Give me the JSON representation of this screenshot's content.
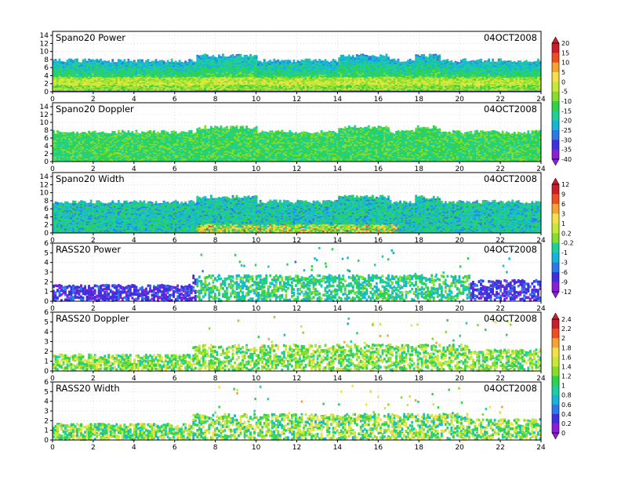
{
  "date_label": "04OCT2008",
  "x_ticks": [
    "0",
    "2",
    "4",
    "6",
    "8",
    "10",
    "12",
    "14",
    "16",
    "18",
    "20",
    "22",
    "24"
  ],
  "colorbars": [
    {
      "ticks": [
        "20",
        "15",
        "10",
        "5",
        "0",
        "-5",
        "-10",
        "-15",
        "-20",
        "-25",
        "-30",
        "-35",
        "-40"
      ]
    },
    {
      "ticks": [
        "12",
        "9",
        "6",
        "3",
        "1",
        "0.2",
        "-0.2",
        "-1",
        "-3",
        "-6",
        "-9",
        "-12"
      ]
    },
    {
      "ticks": [
        "2.4",
        "2.2",
        "2",
        "1.8",
        "1.6",
        "1.4",
        "1.2",
        "1",
        "0.8",
        "0.6",
        "0.4",
        "0.2",
        "0"
      ]
    }
  ],
  "palette": [
    "#8a1fd8",
    "#3e2fe0",
    "#2c79e8",
    "#17b4d8",
    "#1fcf9a",
    "#2fd24a",
    "#86dd2c",
    "#c8e838",
    "#f3e04a",
    "#f5a433",
    "#ee4f22",
    "#c81f2b"
  ],
  "chart_data": [
    {
      "type": "heatmap",
      "title": "Spano20 Power",
      "date": "04OCT2008",
      "y_ticks": [
        "0",
        "2",
        "4",
        "6",
        "8",
        "10",
        "12",
        "14"
      ],
      "ylim": [
        0,
        15
      ],
      "xlim": [
        0,
        24
      ],
      "colorbar": 0,
      "data_top_km": 7.8,
      "grid": true
    },
    {
      "type": "heatmap",
      "title": "Spano20 Doppler",
      "date": "04OCT2008",
      "y_ticks": [
        "0",
        "2",
        "4",
        "6",
        "8",
        "10",
        "12",
        "14"
      ],
      "ylim": [
        0,
        15
      ],
      "xlim": [
        0,
        24
      ],
      "colorbar": 0,
      "data_top_km": 7.6,
      "grid": true
    },
    {
      "type": "heatmap",
      "title": "Spano20 Width",
      "date": "04OCT2008",
      "y_ticks": [
        "0",
        "2",
        "4",
        "6",
        "8",
        "10",
        "12",
        "14"
      ],
      "ylim": [
        0,
        15
      ],
      "xlim": [
        0,
        24
      ],
      "colorbar": 1,
      "data_top_km": 7.8,
      "grid": true
    },
    {
      "type": "heatmap",
      "title": "RASS20 Power",
      "date": "04OCT2008",
      "y_ticks": [
        "0",
        "1",
        "2",
        "3",
        "4",
        "5",
        "6"
      ],
      "ylim": [
        0,
        6
      ],
      "xlim": [
        0,
        24
      ],
      "colorbar": 1,
      "data_top_km": 3,
      "grid": true
    },
    {
      "type": "heatmap",
      "title": "RASS20 Doppler",
      "date": "04OCT2008",
      "y_ticks": [
        "0",
        "1",
        "2",
        "3",
        "4",
        "5",
        "6"
      ],
      "ylim": [
        0,
        6
      ],
      "xlim": [
        0,
        24
      ],
      "colorbar": 2,
      "data_top_km": 3,
      "grid": true
    },
    {
      "type": "heatmap",
      "title": "RASS20 Width",
      "date": "04OCT2008",
      "y_ticks": [
        "0",
        "1",
        "2",
        "3",
        "4",
        "5",
        "6"
      ],
      "ylim": [
        0,
        6
      ],
      "xlim": [
        0,
        24
      ],
      "colorbar": 2,
      "data_top_km": 3,
      "grid": true
    }
  ]
}
